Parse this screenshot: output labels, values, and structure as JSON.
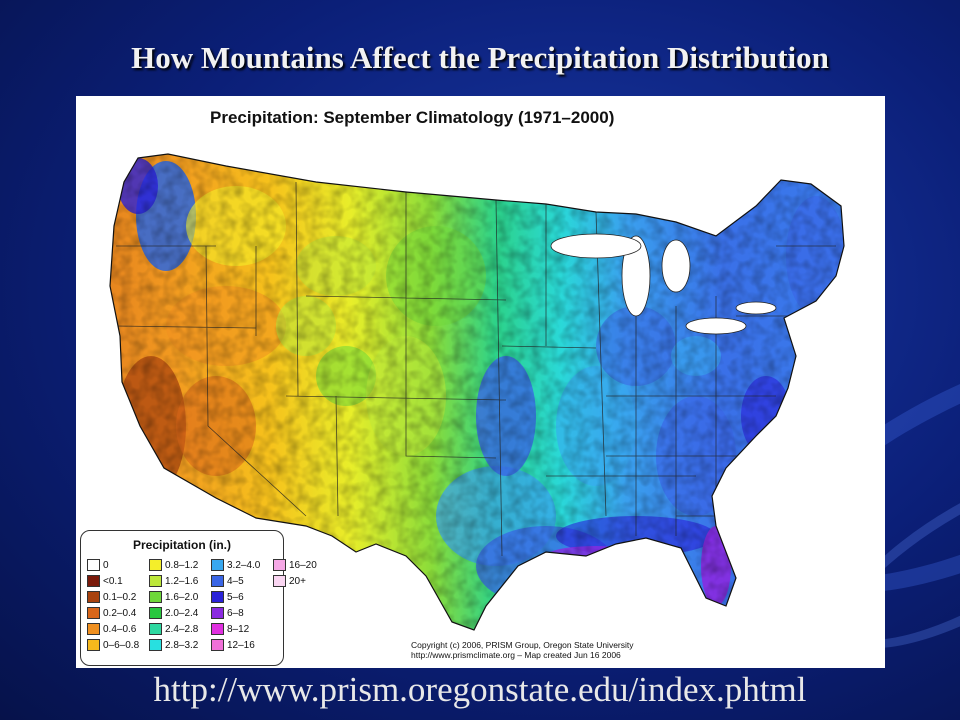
{
  "slide": {
    "title": "How Mountains Affect the Precipitation Distribution",
    "url": "http://www.prism.oregonstate.edu/index.phtml"
  },
  "map": {
    "title": "Precipitation:  September Climatology (1971–2000)",
    "legend": {
      "title": "Precipitation (in.)",
      "items": [
        {
          "label": "0",
          "color": "#ffffff"
        },
        {
          "label": "<0.1",
          "color": "#7a1a0a"
        },
        {
          "label": "0.1–0.2",
          "color": "#a8420e"
        },
        {
          "label": "0.2–0.4",
          "color": "#d8661a"
        },
        {
          "label": "0.4–0.6",
          "color": "#f09020"
        },
        {
          "label": "0–6–0.8",
          "color": "#f6b81c"
        },
        {
          "label": "0.8–1.2",
          "color": "#f4ee2a"
        },
        {
          "label": "1.2–1.6",
          "color": "#bde83a"
        },
        {
          "label": "1.6–2.0",
          "color": "#6ed83a"
        },
        {
          "label": "2.0–2.4",
          "color": "#28c83e"
        },
        {
          "label": "2.4–2.8",
          "color": "#2ed8a0"
        },
        {
          "label": "2.8–3.2",
          "color": "#28e0e0"
        },
        {
          "label": "3.2–4.0",
          "color": "#38a8f0"
        },
        {
          "label": "4–5",
          "color": "#3a66e6"
        },
        {
          "label": "5–6",
          "color": "#2a22d8"
        },
        {
          "label": "6–8",
          "color": "#8a2ae0"
        },
        {
          "label": "8–12",
          "color": "#e030e0"
        },
        {
          "label": "12–16",
          "color": "#f070d8"
        },
        {
          "label": "16–20",
          "color": "#f6a8e6"
        },
        {
          "label": "20+",
          "color": "#fad6f2"
        }
      ]
    },
    "copyright_line1": "Copyright (c) 2006, PRISM Group, Oregon State University",
    "copyright_line2": "http://www.prismclimate.org  –  Map created Jun 16 2006"
  }
}
